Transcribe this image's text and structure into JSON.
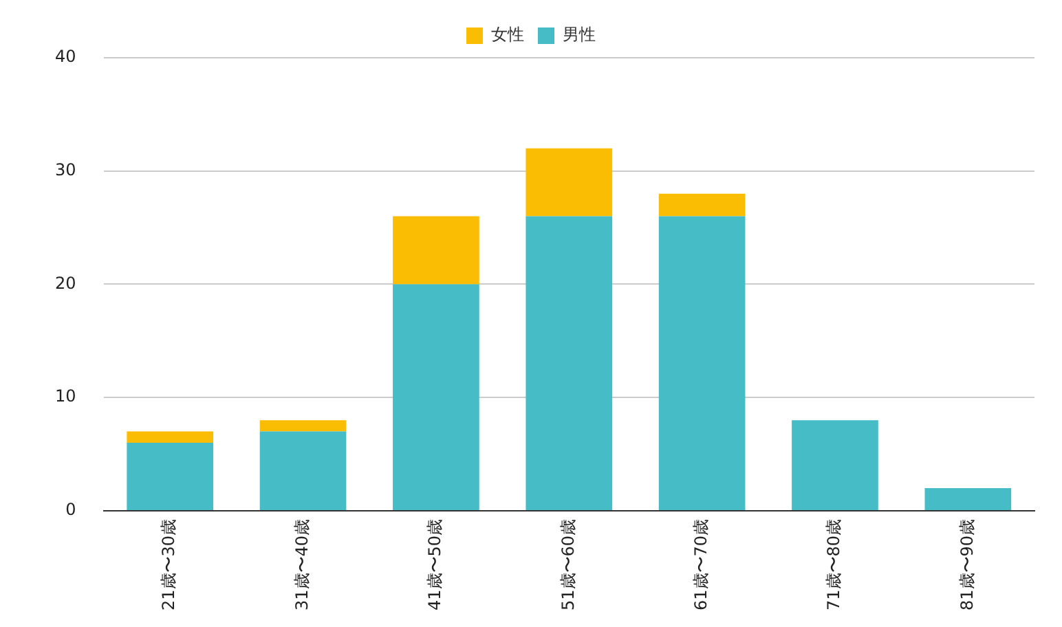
{
  "chart_data": {
    "type": "bar",
    "stacked": true,
    "categories": [
      "21歳〜30歳",
      "31歳〜40歳",
      "41歳〜50歳",
      "51歳〜60歳",
      "61歳〜70歳",
      "71歳〜80歳",
      "81歳〜90歳"
    ],
    "series": [
      {
        "name": "男性",
        "color": "#46bdc6",
        "values": [
          6,
          7,
          20,
          26,
          26,
          8,
          2
        ]
      },
      {
        "name": "女性",
        "color": "#fbbc04",
        "values": [
          1,
          1,
          6,
          6,
          2,
          0,
          0
        ]
      }
    ],
    "ylim": [
      0,
      40
    ],
    "yticks": [
      0,
      10,
      20,
      30,
      40
    ],
    "grid": "y",
    "legend": "top"
  }
}
